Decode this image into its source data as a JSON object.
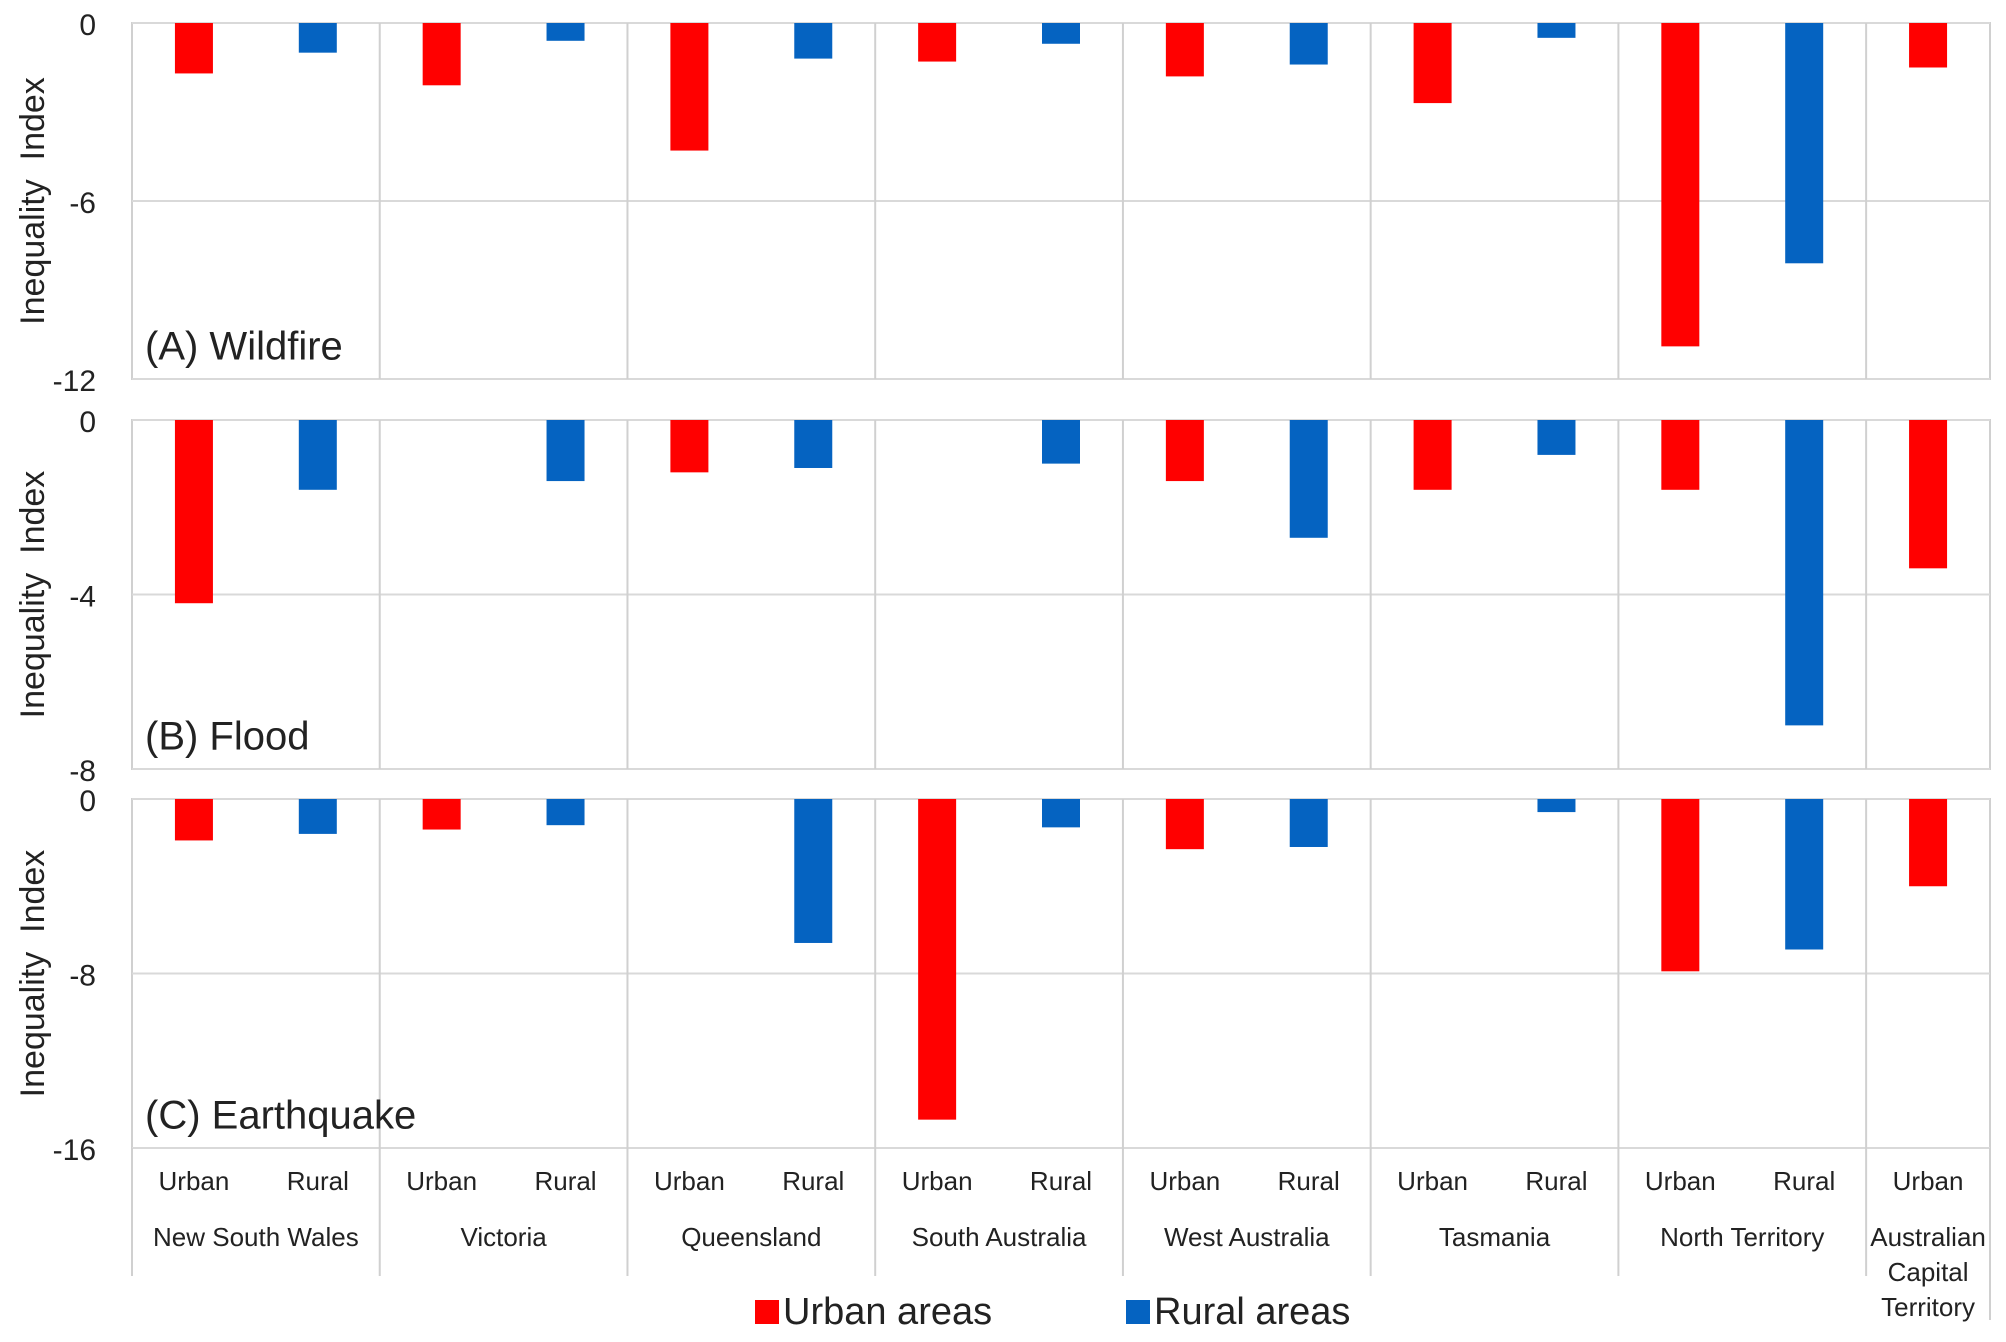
{
  "legend": [
    {
      "name": "Urban areas",
      "color": "#ff0000"
    },
    {
      "name": "Rural areas",
      "color": "#0563c1"
    }
  ],
  "x_axis": {
    "categories": [
      "New South Wales",
      "Victoria",
      "Queensland",
      "South Australia",
      "West Australia",
      "Tasmania",
      "North Territory",
      [
        "Australian",
        "Capital",
        "Territory"
      ]
    ],
    "sub_labels": [
      [
        "Urban",
        "Rural"
      ],
      [
        "Urban",
        "Rural"
      ],
      [
        "Urban",
        "Rural"
      ],
      [
        "Urban",
        "Rural"
      ],
      [
        "Urban",
        "Rural"
      ],
      [
        "Urban",
        "Rural"
      ],
      [
        "Urban",
        "Rural"
      ],
      [
        "Urban"
      ]
    ]
  },
  "chart_data": [
    {
      "type": "bar",
      "title": "(A) Wildfire",
      "y_label": "Inequality  Index",
      "ylim": [
        -12,
        0
      ],
      "yticks": [
        0,
        -6,
        -12
      ],
      "grid": true,
      "series": [
        {
          "values": [
            -1.7,
            -2.1,
            -4.3,
            -1.3,
            -1.8,
            -2.7,
            -10.9,
            -1.5
          ]
        },
        {
          "values": [
            -1.0,
            -0.6,
            -1.2,
            -0.7,
            -1.4,
            -0.5,
            -8.1,
            null
          ]
        }
      ]
    },
    {
      "type": "bar",
      "title": "(B) Flood",
      "y_label": "Inequality  Index",
      "ylim": [
        -8,
        0
      ],
      "yticks": [
        0,
        -4,
        -8
      ],
      "grid": true,
      "series": [
        {
          "values": [
            -4.2,
            null,
            -1.2,
            null,
            -1.4,
            -1.6,
            -1.6,
            -3.4
          ]
        },
        {
          "values": [
            -1.6,
            -1.4,
            -1.1,
            -1.0,
            -2.7,
            -0.8,
            -7.0,
            null
          ]
        }
      ]
    },
    {
      "type": "bar",
      "title": "(C) Earthquake",
      "y_label": "Inequality  Index",
      "ylim": [
        -16,
        0
      ],
      "yticks": [
        0,
        -8,
        -16
      ],
      "grid": true,
      "series": [
        {
          "values": [
            -1.9,
            -1.4,
            null,
            -14.7,
            -2.3,
            null,
            -7.9,
            -4.0
          ]
        },
        {
          "values": [
            -1.6,
            -1.2,
            -6.6,
            -1.3,
            -2.2,
            -0.6,
            -6.9,
            null
          ]
        }
      ]
    }
  ]
}
